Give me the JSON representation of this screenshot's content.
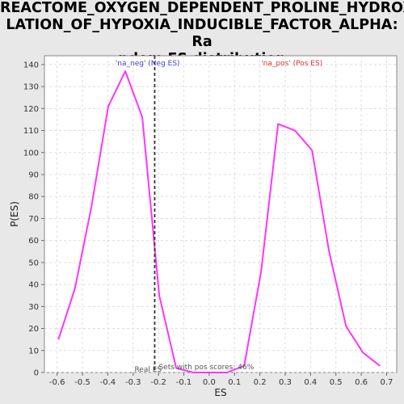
{
  "chart_data": {
    "type": "line",
    "title_line1": "REACTOME_OXYGEN_DEPENDENT_PROLINE_HYDROXY",
    "title_line2": "LATION_OF_HYPOXIA_INDUCIBLE_FACTOR_ALPHA: Ra",
    "title_line3": "ndom ES distribution",
    "xlabel": "ES",
    "ylabel": "P(ES)",
    "xlim": [
      -0.65,
      0.74
    ],
    "ylim": [
      0,
      144
    ],
    "xticks": [
      -0.6,
      -0.5,
      -0.4,
      -0.3,
      -0.2,
      -0.1,
      0.0,
      0.1,
      0.2,
      0.3,
      0.4,
      0.5,
      0.6,
      0.7
    ],
    "xtick_labels": [
      "-0.6",
      "-0.5",
      "-0.4",
      "-0.3",
      "-0.2",
      "-0.1",
      "0.0",
      "0.1",
      "0.2",
      "0.3",
      "0.4",
      "0.5",
      "0.6",
      "0.7"
    ],
    "yticks": [
      0,
      10,
      20,
      30,
      40,
      50,
      60,
      70,
      80,
      90,
      100,
      110,
      120,
      130,
      140
    ],
    "ytick_labels": [
      "0",
      "10",
      "20",
      "30",
      "40",
      "50",
      "60",
      "70",
      "80",
      "90",
      "100",
      "110",
      "120",
      "130",
      "140"
    ],
    "grid": true,
    "series": [
      {
        "color": "#ff33ff",
        "x": [
          -0.595,
          -0.53,
          -0.465,
          -0.398,
          -0.331,
          -0.264,
          -0.197,
          -0.13,
          -0.063,
          0.004,
          0.071,
          0.138,
          0.205,
          0.272,
          0.339,
          0.406,
          0.473,
          0.54,
          0.607,
          0.674
        ],
        "y": [
          15,
          38,
          75,
          121,
          137,
          116,
          35,
          2,
          0,
          0,
          0,
          3,
          46,
          113,
          110,
          101,
          55,
          21,
          9,
          3
        ]
      }
    ],
    "real_es_line": {
      "x": -0.215,
      "color": "#333333"
    },
    "annotations": {
      "neg_label": "'na_neg' (Neg ES)",
      "neg_color": "#4444cc",
      "pos_label": "'na_pos' (Pos ES)",
      "pos_color": "#dd3333",
      "real_es_label": "Real ES",
      "sets_label": "Sets with pos scores: 46%",
      "label_color": "#555555"
    }
  }
}
